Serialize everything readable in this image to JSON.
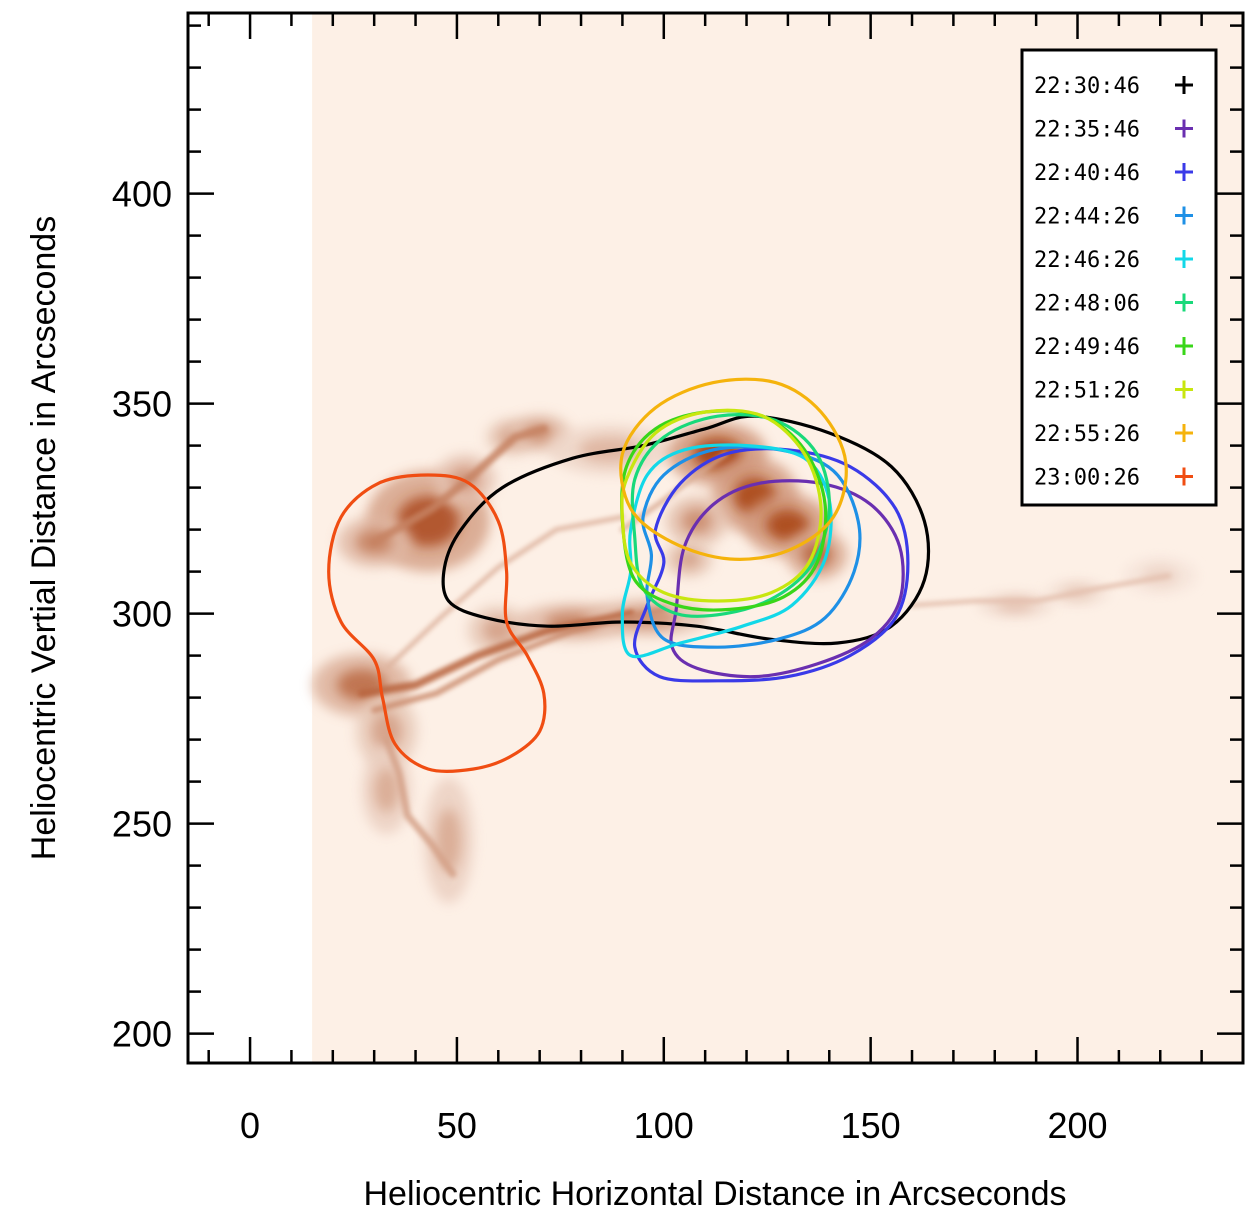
{
  "chart_data": {
    "type": "image-contour",
    "title": "",
    "xlabel": "Heliocentric Horizontal Distance in Arcseconds",
    "ylabel": "Heliocentric Vertial Distance in Arcseconds",
    "xlim": [
      -15,
      240
    ],
    "ylim": [
      193,
      443
    ],
    "x_ticks": [
      0,
      50,
      100,
      150,
      200
    ],
    "y_ticks": [
      200,
      250,
      300,
      350,
      400
    ],
    "x_minor_step": 10,
    "y_minor_step": 10,
    "grid": false,
    "legend_position": "top-right",
    "background_image": {
      "colormap": "white-to-dark-orange",
      "data_extent_x": [
        15,
        240
      ],
      "bright_features": [
        {
          "x": 43,
          "y": 322,
          "rx": 10,
          "ry": 8,
          "strength": 0.85
        },
        {
          "x": 30,
          "y": 317,
          "rx": 6,
          "ry": 4,
          "strength": 0.6
        },
        {
          "x": 52,
          "y": 332,
          "rx": 5,
          "ry": 4,
          "strength": 0.5
        },
        {
          "x": 63,
          "y": 342,
          "rx": 4,
          "ry": 3,
          "strength": 0.45
        },
        {
          "x": 70,
          "y": 343,
          "rx": 5,
          "ry": 3,
          "strength": 0.55
        },
        {
          "x": 87,
          "y": 339,
          "rx": 10,
          "ry": 4,
          "strength": 0.35
        },
        {
          "x": 27,
          "y": 283,
          "rx": 8,
          "ry": 5,
          "strength": 0.7
        },
        {
          "x": 33,
          "y": 272,
          "rx": 5,
          "ry": 6,
          "strength": 0.45
        },
        {
          "x": 33,
          "y": 258,
          "rx": 4,
          "ry": 7,
          "strength": 0.4
        },
        {
          "x": 48,
          "y": 246,
          "rx": 4,
          "ry": 10,
          "strength": 0.4
        },
        {
          "x": 113,
          "y": 338,
          "rx": 8,
          "ry": 5,
          "strength": 0.95
        },
        {
          "x": 122,
          "y": 328,
          "rx": 7,
          "ry": 6,
          "strength": 0.9
        },
        {
          "x": 130,
          "y": 321,
          "rx": 7,
          "ry": 5,
          "strength": 0.9
        },
        {
          "x": 137,
          "y": 314,
          "rx": 5,
          "ry": 4,
          "strength": 0.75
        },
        {
          "x": 108,
          "y": 322,
          "rx": 5,
          "ry": 4,
          "strength": 0.55
        },
        {
          "x": 106,
          "y": 313,
          "rx": 4,
          "ry": 3,
          "strength": 0.45
        },
        {
          "x": 60,
          "y": 296,
          "rx": 5,
          "ry": 4,
          "strength": 0.45
        },
        {
          "x": 78,
          "y": 298,
          "rx": 9,
          "ry": 3,
          "strength": 0.6
        },
        {
          "x": 96,
          "y": 299,
          "rx": 10,
          "ry": 3,
          "strength": 0.55
        },
        {
          "x": 185,
          "y": 302,
          "rx": 6,
          "ry": 2,
          "strength": 0.3
        },
        {
          "x": 200,
          "y": 305,
          "rx": 5,
          "ry": 2,
          "strength": 0.25
        },
        {
          "x": 220,
          "y": 309,
          "rx": 6,
          "ry": 3,
          "strength": 0.2
        }
      ],
      "loop_arcs": [
        {
          "points": [
            [
              27,
              281
            ],
            [
              40,
              283
            ],
            [
              55,
              290
            ],
            [
              72,
              296
            ],
            [
              92,
              300
            ]
          ],
          "width": 1.6,
          "strength": 0.75
        },
        {
          "points": [
            [
              30,
              277
            ],
            [
              45,
              281
            ],
            [
              60,
              289
            ],
            [
              78,
              296
            ],
            [
              100,
              301
            ]
          ],
          "width": 1.2,
          "strength": 0.55
        },
        {
          "points": [
            [
              30,
              317
            ],
            [
              44,
              325
            ],
            [
              54,
              333
            ],
            [
              64,
              342
            ],
            [
              71,
              344
            ]
          ],
          "width": 1.6,
          "strength": 0.6
        },
        {
          "points": [
            [
              33,
              287
            ],
            [
              46,
              299
            ],
            [
              60,
              311
            ],
            [
              74,
              320
            ],
            [
              90,
              323
            ]
          ],
          "width": 1.0,
          "strength": 0.35
        },
        {
          "points": [
            [
              33,
              270
            ],
            [
              36,
              262
            ],
            [
              38,
              252
            ],
            [
              44,
              245
            ],
            [
              49,
              238
            ]
          ],
          "width": 1.4,
          "strength": 0.45
        },
        {
          "points": [
            [
              90,
              320
            ],
            [
              100,
              327
            ],
            [
              108,
              333
            ],
            [
              115,
              338
            ]
          ],
          "width": 1.0,
          "strength": 0.4
        },
        {
          "points": [
            [
              160,
              302
            ],
            [
              175,
              303
            ],
            [
              190,
              303
            ],
            [
              205,
              306
            ],
            [
              222,
              309
            ]
          ],
          "width": 1.0,
          "strength": 0.3
        }
      ]
    },
    "series": [
      {
        "name": "22:30:46",
        "color": "#000000",
        "contour": [
          [
            122,
            347
          ],
          [
            140,
            343
          ],
          [
            155,
            335
          ],
          [
            163,
            322
          ],
          [
            163,
            308
          ],
          [
            155,
            297
          ],
          [
            142,
            293
          ],
          [
            125,
            294
          ],
          [
            108,
            297
          ],
          [
            90,
            298
          ],
          [
            72,
            297
          ],
          [
            57,
            299
          ],
          [
            48,
            303
          ],
          [
            47,
            311
          ],
          [
            51,
            320
          ],
          [
            61,
            330
          ],
          [
            78,
            337
          ],
          [
            95,
            340
          ],
          [
            110,
            344
          ]
        ]
      },
      {
        "name": "22:35:46",
        "color": "#6a2fb0",
        "contour": [
          [
            105,
            316
          ],
          [
            112,
            326
          ],
          [
            123,
            331
          ],
          [
            138,
            331
          ],
          [
            150,
            326
          ],
          [
            157,
            316
          ],
          [
            157,
            303
          ],
          [
            150,
            294
          ],
          [
            137,
            288
          ],
          [
            122,
            285
          ],
          [
            108,
            287
          ],
          [
            102,
            292
          ],
          [
            103,
            301
          ]
        ]
      },
      {
        "name": "22:40:46",
        "color": "#3a3ae8",
        "contour": [
          [
            98,
            320
          ],
          [
            104,
            331
          ],
          [
            115,
            338
          ],
          [
            130,
            339
          ],
          [
            145,
            335
          ],
          [
            156,
            325
          ],
          [
            159,
            312
          ],
          [
            156,
            299
          ],
          [
            145,
            290
          ],
          [
            130,
            285
          ],
          [
            113,
            284
          ],
          [
            99,
            285
          ],
          [
            93,
            292
          ],
          [
            96,
            302
          ],
          [
            100,
            312
          ]
        ]
      },
      {
        "name": "22:44:26",
        "color": "#1e90e6",
        "contour": [
          [
            95,
            323
          ],
          [
            100,
            333
          ],
          [
            112,
            339
          ],
          [
            128,
            339
          ],
          [
            141,
            334
          ],
          [
            147,
            322
          ],
          [
            146,
            310
          ],
          [
            139,
            299
          ],
          [
            128,
            294
          ],
          [
            113,
            292
          ],
          [
            100,
            294
          ],
          [
            96,
            304
          ],
          [
            97,
            314
          ]
        ]
      },
      {
        "name": "22:46:26",
        "color": "#12d8e8",
        "contour": [
          [
            92,
            320
          ],
          [
            96,
            333
          ],
          [
            105,
            339
          ],
          [
            120,
            340
          ],
          [
            134,
            337
          ],
          [
            140,
            327
          ],
          [
            139,
            313
          ],
          [
            131,
            302
          ],
          [
            119,
            297
          ],
          [
            104,
            293
          ],
          [
            92,
            290
          ],
          [
            90,
            300
          ],
          [
            92,
            310
          ]
        ]
      },
      {
        "name": "22:48:06",
        "color": "#19d97a",
        "contour": [
          [
            93,
            332
          ],
          [
            100,
            342
          ],
          [
            113,
            347
          ],
          [
            127,
            346
          ],
          [
            137,
            338
          ],
          [
            140,
            325
          ],
          [
            136,
            312
          ],
          [
            127,
            304
          ],
          [
            115,
            300
          ],
          [
            103,
            300
          ],
          [
            95,
            306
          ],
          [
            93,
            318
          ]
        ]
      },
      {
        "name": "22:49:46",
        "color": "#39d619",
        "contour": [
          [
            91,
            335
          ],
          [
            98,
            344
          ],
          [
            110,
            348
          ],
          [
            124,
            347
          ],
          [
            134,
            339
          ],
          [
            139,
            326
          ],
          [
            137,
            312
          ],
          [
            129,
            304
          ],
          [
            116,
            301
          ],
          [
            103,
            302
          ],
          [
            93,
            308
          ],
          [
            90,
            322
          ]
        ]
      },
      {
        "name": "22:51:26",
        "color": "#c8e60f",
        "contour": [
          [
            91,
            332
          ],
          [
            98,
            343
          ],
          [
            110,
            348
          ],
          [
            124,
            347
          ],
          [
            134,
            338
          ],
          [
            138,
            325
          ],
          [
            135,
            312
          ],
          [
            126,
            305
          ],
          [
            113,
            303
          ],
          [
            100,
            305
          ],
          [
            92,
            312
          ],
          [
            90,
            323
          ]
        ]
      },
      {
        "name": "22:55:26",
        "color": "#f5b30c",
        "contour": [
          [
            90,
            338
          ],
          [
            98,
            349
          ],
          [
            112,
            355
          ],
          [
            127,
            355
          ],
          [
            138,
            348
          ],
          [
            144,
            336
          ],
          [
            141,
            323
          ],
          [
            130,
            315
          ],
          [
            116,
            313
          ],
          [
            102,
            317
          ],
          [
            92,
            325
          ]
        ]
      },
      {
        "name": "23:00:26",
        "color": "#f04d12",
        "contour": [
          [
            43,
            333
          ],
          [
            53,
            331
          ],
          [
            60,
            322
          ],
          [
            62,
            310
          ],
          [
            62,
            298
          ],
          [
            67,
            290
          ],
          [
            71,
            281
          ],
          [
            70,
            272
          ],
          [
            63,
            266
          ],
          [
            54,
            263
          ],
          [
            43,
            263
          ],
          [
            35,
            269
          ],
          [
            32,
            280
          ],
          [
            30,
            289
          ],
          [
            22,
            298
          ],
          [
            19,
            310
          ],
          [
            22,
            323
          ],
          [
            31,
            331
          ]
        ]
      }
    ]
  }
}
